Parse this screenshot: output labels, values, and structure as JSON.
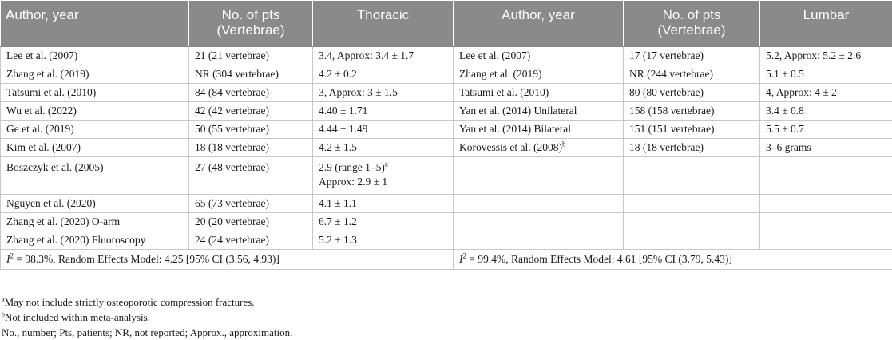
{
  "headers": {
    "col1": "Author, year",
    "col2_line1": "No. of pts",
    "col2_line2": "(Vertebrae)",
    "col3": "Thoracic",
    "col4": "Author, year",
    "col5_line1": "No. of pts",
    "col5_line2": "(Vertebrae)",
    "col6": "Lumbar"
  },
  "rows": [
    {
      "t_author": "Lee et al. (2007)",
      "t_pts": "21 (21 vertebrae)",
      "t_val": "3.4, Approx: 3.4 ± 1.7",
      "l_author": "Lee et al. (2007)",
      "l_pts": "17 (17 vertebrae)",
      "l_val": "5.2, Approx: 5.2 ± 2.6"
    },
    {
      "t_author": "Zhang et al. (2019)",
      "t_pts": "NR (304 vertebrae)",
      "t_val": "4.2 ± 0.2",
      "l_author": "Zhang et al. (2019)",
      "l_pts": "NR (244 vertebrae)",
      "l_val": "5.1 ± 0.5"
    },
    {
      "t_author": "Tatsumi et al. (2010)",
      "t_pts": "84 (84 vertebrae)",
      "t_val": "3, Approx: 3 ± 1.5",
      "l_author": "Tatsumi et al. (2010)",
      "l_pts": "80 (80 vertebrae)",
      "l_val": "4, Approx: 4 ± 2"
    },
    {
      "t_author": "Wu et al. (2022)",
      "t_pts": "42 (42 vertebrae)",
      "t_val": "4.40 ± 1.71",
      "l_author": "Yan et al. (2014) Unilateral",
      "l_pts": "158 (158 vertebrae)",
      "l_val": "3.4 ± 0.8"
    },
    {
      "t_author": "Ge et al. (2019)",
      "t_pts": "50 (55 vertebrae)",
      "t_val": "4.44 ± 1.49",
      "l_author": "Yan et al. (2014) Bilateral",
      "l_pts": "151 (151 vertebrae)",
      "l_val": "5.5 ± 0.7"
    },
    {
      "t_author": "Kim et al. (2007)",
      "t_pts": "18 (18 vertebrae)",
      "t_val": "4.2 ± 1.5",
      "l_author": "Korovessis et al. (2008)",
      "l_author_sup": "b",
      "l_pts": "18 (18 vertebrae)",
      "l_val": "3–6 grams"
    }
  ],
  "row_boszczyk": {
    "t_author": "Boszczyk et al. (2005)",
    "t_pts": "27 (48 vertebrae)",
    "t_val_line1": "2.9 (range 1–5)",
    "t_val_sup": "a",
    "t_val_line2": "Approx: 2.9 ± 1"
  },
  "rows_tail": [
    {
      "t_author": "Nguyen et al. (2020)",
      "t_pts": "65 (73 vertebrae)",
      "t_val": "4.1 ± 1.1"
    },
    {
      "t_author": "Zhang et al. (2020) O-arm",
      "t_pts": "20 (20 vertebrae)",
      "t_val": "6.7 ± 1.2"
    },
    {
      "t_author": "Zhang et al. (2020) Fluoroscopy",
      "t_pts": "24 (24 vertebrae)",
      "t_val": "5.2 ± 1.3"
    }
  ],
  "summary": {
    "thoracic_i": "I",
    "thoracic_sup": "2",
    "thoracic_text": " = 98.3%, Random Effects Model: 4.25 [95% CI (3.56, 4.93)]",
    "lumbar_i": "I",
    "lumbar_sup": "2",
    "lumbar_text": " = 99.4%, Random Effects Model: 4.61 [95% CI (3.79, 5.43)]"
  },
  "footnotes": {
    "a_mark": "a",
    "a_text": "May not include strictly osteoporotic compression fractures.",
    "b_mark": "b",
    "b_text": "Not included within meta-analysis.",
    "abbrev": "No., number; Pts, patients; NR, not reported; Approx., approximation."
  },
  "colors": {
    "header_bg": "#8a8a8a",
    "header_text": "#ffffff",
    "grid": "#c8c8c8"
  }
}
